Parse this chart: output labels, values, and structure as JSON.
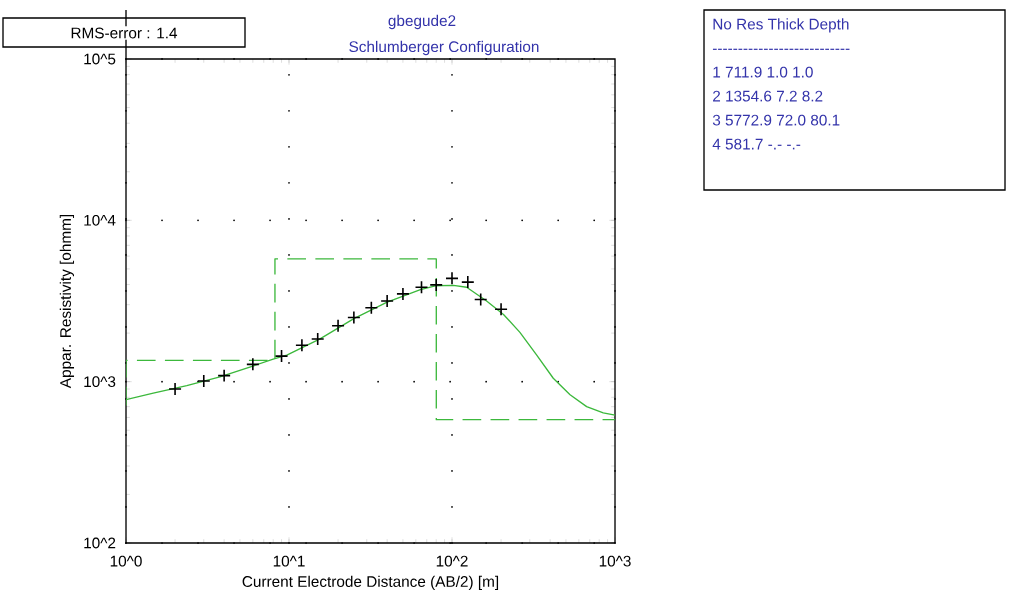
{
  "chart_data": {
    "type": "line",
    "title": "gbegude2",
    "subtitle": "Schlumberger Configuration",
    "xlabel": "Current Electrode Distance (AB/2) [m]",
    "ylabel": "Appar. Resistivity [ohmm]",
    "log": "xy",
    "grid": true,
    "xlim": [
      1,
      1000
    ],
    "ylim": [
      100,
      100000
    ],
    "xticks": [
      {
        "value": 1,
        "label": "10^0"
      },
      {
        "value": 10,
        "label": "10^1"
      },
      {
        "value": 100,
        "label": "10^2"
      },
      {
        "value": 1000,
        "label": "10^3"
      }
    ],
    "yticks": [
      {
        "value": 100,
        "label": "10^2"
      },
      {
        "value": 1000,
        "label": "10^3"
      },
      {
        "value": 10000,
        "label": "10^4"
      },
      {
        "value": 100000,
        "label": "10^5"
      }
    ],
    "series": [
      {
        "color": "#3cb83c",
        "line_style": "dashed",
        "marker": "none",
        "x": [
          1,
          1,
          8.2,
          8.2,
          80.1,
          80.1,
          1000
        ],
        "values": [
          711.9,
          1354.6,
          1354.6,
          5772.9,
          5772.9,
          581.7,
          581.7
        ]
      },
      {
        "color": "#3cb83c",
        "line_style": "solid",
        "marker": "none",
        "x": [
          1,
          1.47,
          2.36,
          3.77,
          6.0,
          8.0,
          9.7,
          15.5,
          25,
          40,
          64,
          79,
          102,
          123,
          163,
          207,
          261,
          331,
          418,
          530,
          670,
          847,
          1000
        ],
        "values": [
          773,
          850,
          946,
          1070,
          1250,
          1380,
          1460,
          1840,
          2460,
          3110,
          3720,
          3930,
          3950,
          3850,
          3160,
          2610,
          2020,
          1460,
          1050,
          830,
          700,
          640,
          620
        ]
      },
      {
        "type": "scatter",
        "color": "#000000",
        "marker": "cross",
        "x": [
          2,
          3,
          4,
          6,
          9,
          12,
          15,
          20,
          25,
          32,
          40,
          50,
          65,
          80,
          100,
          125,
          150,
          200
        ],
        "values": [
          900,
          1010,
          1090,
          1280,
          1440,
          1680,
          1840,
          2220,
          2500,
          2870,
          3160,
          3500,
          3850,
          3980,
          4370,
          4140,
          3230,
          2810
        ]
      }
    ],
    "annotations": [
      "RMS-error : 1.4",
      "No Res Thick Depth",
      "---------------------------",
      "1 711.9 1.0 1.0",
      "2 1354.6 7.2 8.2",
      "3 5772.9 72.0 80.1",
      "4 581.7 -.- -.-"
    ]
  }
}
